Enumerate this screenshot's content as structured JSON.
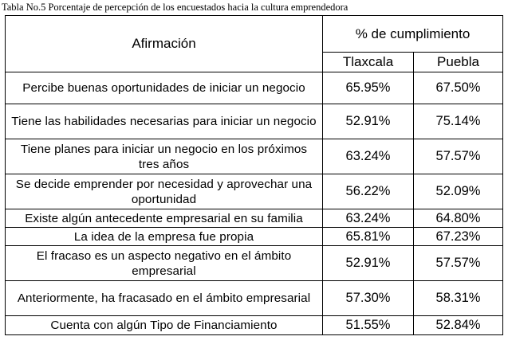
{
  "caption": "Tabla No.5 Porcentaje de percepción de los encuestados hacia la cultura emprendedora",
  "table": {
    "header_statement": "Afirmación",
    "header_group": "% de cumplimiento",
    "header_col1": "Tlaxcala",
    "header_col2": "Puebla",
    "rows": [
      {
        "statement": "Percibe buenas oportunidades de iniciar un negocio",
        "tlaxcala": "65.95%",
        "puebla": "67.50%"
      },
      {
        "statement": "Tiene las habilidades necesarias para iniciar un negocio",
        "tlaxcala": "52.91%",
        "puebla": "75.14%"
      },
      {
        "statement": "Tiene planes para iniciar un negocio en los próximos tres años",
        "tlaxcala": "63.24%",
        "puebla": "57.57%"
      },
      {
        "statement": "Se decide emprender por necesidad y aprovechar una oportunidad",
        "tlaxcala": "56.22%",
        "puebla": "52.09%"
      },
      {
        "statement": "Existe algún antecedente empresarial en su familia",
        "tlaxcala": "63.24%",
        "puebla": "64.80%"
      },
      {
        "statement": "La idea de la empresa fue propia",
        "tlaxcala": "65.81%",
        "puebla": "67.23%"
      },
      {
        "statement": "El fracaso es un aspecto negativo en el ámbito empresarial",
        "tlaxcala": "52.91%",
        "puebla": "57.57%"
      },
      {
        "statement": "Anteriormente, ha fracasado en el ámbito empresarial",
        "tlaxcala": "57.30%",
        "puebla": "58.31%"
      },
      {
        "statement": "Cuenta con algún Tipo de Financiamiento",
        "tlaxcala": "51.55%",
        "puebla": "52.84%"
      }
    ]
  }
}
